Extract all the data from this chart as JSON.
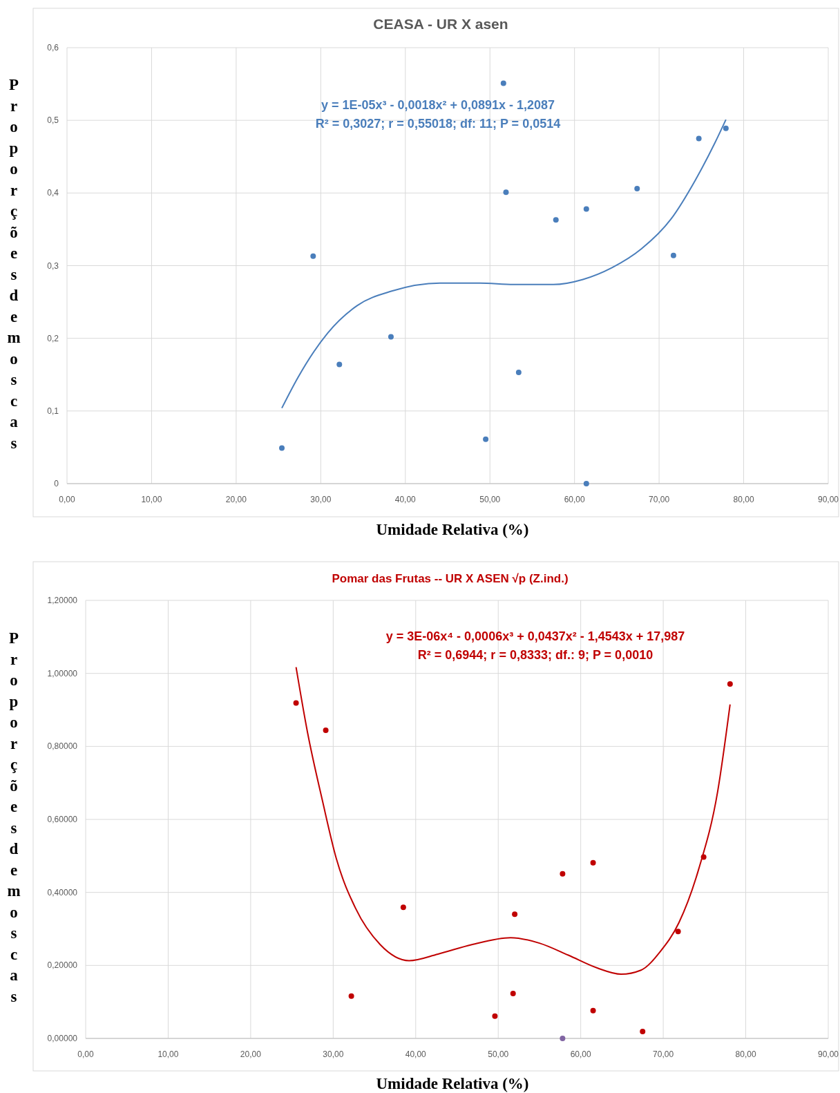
{
  "chart_data": [
    {
      "type": "scatter",
      "title": "CEASA - UR X asen",
      "xlabel": "Umidade Relativa (%)",
      "ylabel": "Proporções de moscas",
      "xlim": [
        0,
        90
      ],
      "ylim": [
        0,
        0.6
      ],
      "xticks": [
        {
          "value": 0,
          "label": "0,00"
        },
        {
          "value": 10,
          "label": "10,00"
        },
        {
          "value": 20,
          "label": "20,00"
        },
        {
          "value": 30,
          "label": "30,00"
        },
        {
          "value": 40,
          "label": "40,00"
        },
        {
          "value": 50,
          "label": "50,00"
        },
        {
          "value": 60,
          "label": "60,00"
        },
        {
          "value": 70,
          "label": "70,00"
        },
        {
          "value": 80,
          "label": "80,00"
        },
        {
          "value": 90,
          "label": "90,00"
        }
      ],
      "yticks": [
        0,
        {
          "value": 0.1,
          "label": "0,1"
        },
        {
          "value": 0.2,
          "label": "0,2"
        },
        {
          "value": 0.3,
          "label": "0,3"
        },
        {
          "value": 0.4,
          "label": "0,4"
        },
        {
          "value": 0.5,
          "label": "0,5"
        },
        {
          "value": 0.6,
          "label": "0,6"
        }
      ],
      "grid": true,
      "marker": "circle",
      "annotations": [
        "y = 1E-05x³ - 0,0018x² + 0,0891x - 1,2087",
        "R² = 0,3027;  r = 0,55018; df: 11; P = 0,0514"
      ],
      "series": [
        {
          "color": "#4a7ebb",
          "x": [
            25.4,
            29.1,
            32.2,
            38.3,
            49.5,
            51.6,
            51.9,
            53.4,
            57.8,
            61.4,
            61.4,
            67.4,
            71.7,
            74.7,
            77.9
          ],
          "values": [
            0.049,
            0.313,
            0.164,
            0.202,
            0.061,
            0.551,
            0.401,
            0.153,
            0.363,
            0.378,
            0.0,
            0.406,
            0.314,
            0.475,
            0.489
          ]
        },
        {
          "type": "line",
          "color": "#4a7ebb",
          "line_style": "solid",
          "marker": "none",
          "x": [
            25.4,
            27.3,
            30.8,
            34.3,
            38.4,
            44.1,
            48.8,
            52.8,
            57.5,
            61,
            64.4,
            67.9,
            71.4,
            74.3,
            76.6,
            77.9
          ],
          "values": [
            0.104,
            0.146,
            0.207,
            0.245,
            0.265,
            0.276,
            0.276,
            0.274,
            0.274,
            0.281,
            0.297,
            0.323,
            0.364,
            0.418,
            0.469,
            0.501
          ]
        }
      ]
    },
    {
      "type": "scatter",
      "title": "Pomar das Frutas -- UR X ASEN √p (Z.ind.)",
      "xlabel": "Umidade Relativa (%)",
      "ylabel": "Proporções de moscas",
      "xlim": [
        0,
        90
      ],
      "ylim": [
        0,
        1.2
      ],
      "xticks": [
        {
          "value": 0,
          "label": "0,00"
        },
        {
          "value": 10,
          "label": "10,00"
        },
        {
          "value": 20,
          "label": "20,00"
        },
        {
          "value": 30,
          "label": "30,00"
        },
        {
          "value": 40,
          "label": "40,00"
        },
        {
          "value": 50,
          "label": "50,00"
        },
        {
          "value": 60,
          "label": "60,00"
        },
        {
          "value": 70,
          "label": "70,00"
        },
        {
          "value": 80,
          "label": "80,00"
        },
        {
          "value": 90,
          "label": "90,00"
        }
      ],
      "yticks": [
        {
          "value": 0,
          "label": "0,00000"
        },
        {
          "value": 0.2,
          "label": "0,20000"
        },
        {
          "value": 0.4,
          "label": "0,40000"
        },
        {
          "value": 0.6,
          "label": "0,60000"
        },
        {
          "value": 0.8,
          "label": "0,80000"
        },
        {
          "value": 1,
          "label": "1,00000"
        },
        {
          "value": 1.2,
          "label": "1,20000"
        }
      ],
      "grid": true,
      "marker": "circle",
      "annotations": [
        "y = 3E-06x⁴ - 0,0006x³ + 0,0437x² - 1,4543x + 17,987",
        "R² = 0,6944;  r = 0,8333; df.: 9; P = 0,0010"
      ],
      "series": [
        {
          "color": "#c00000",
          "colors": [
            "#c00000",
            "#c00000",
            "#c00000",
            "#c00000",
            "#c00000",
            "#c00000",
            "#c00000",
            "#c00000",
            "#8064a2",
            "#c00000",
            "#c00000",
            "#c00000",
            "#c00000",
            "#c00000",
            "#c00000"
          ],
          "x": [
            25.5,
            29.1,
            32.2,
            38.5,
            49.6,
            51.8,
            52.0,
            57.8,
            57.8,
            61.5,
            61.5,
            67.5,
            71.8,
            74.9,
            78.1
          ],
          "values": [
            0.919,
            0.844,
            0.116,
            0.359,
            0.061,
            0.123,
            0.34,
            0.451,
            0.0,
            0.481,
            0.076,
            0.019,
            0.293,
            0.497,
            0.971
          ]
        },
        {
          "type": "line",
          "color": "#c00000",
          "line_style": "solid",
          "marker": "none",
          "x": [
            25.5,
            26.9,
            28.7,
            30.4,
            32.7,
            35.7,
            39.2,
            42.7,
            46.8,
            51.5,
            55,
            58.5,
            62,
            64.9,
            67.3,
            69.6,
            71.9,
            74.3,
            76.6,
            78.1
          ],
          "values": [
            1.017,
            0.837,
            0.651,
            0.491,
            0.357,
            0.257,
            0.213,
            0.231,
            0.257,
            0.276,
            0.261,
            0.228,
            0.193,
            0.176,
            0.187,
            0.237,
            0.317,
            0.464,
            0.677,
            0.915
          ]
        }
      ]
    }
  ]
}
